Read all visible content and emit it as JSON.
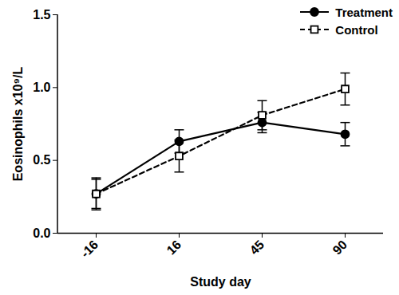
{
  "chart_data": {
    "type": "line",
    "categories": [
      "-16",
      "16",
      "45",
      "90"
    ],
    "x_label": "Study day",
    "y_label": "Eosinophils x10⁹/L",
    "ylim": [
      0,
      1.5
    ],
    "yticks": [
      {
        "value": 0,
        "label": "0.0"
      },
      {
        "value": 0.5,
        "label": "0.5"
      },
      {
        "value": 1,
        "label": "1.0"
      },
      {
        "value": 1.5,
        "label": "1.5"
      }
    ],
    "legend": "upper right",
    "series": [
      {
        "name": "Treatment",
        "color": "#000000",
        "marker": "circle",
        "line_style": "solid",
        "values": [
          0.27,
          0.63,
          0.76,
          0.68
        ],
        "errors": [
          0.1,
          0.08,
          0.07,
          0.08
        ]
      },
      {
        "name": "Control",
        "color": "#000000",
        "marker": "open_square",
        "line_style": "dashed",
        "values": [
          0.27,
          0.53,
          0.81,
          0.99
        ],
        "errors": [
          0.11,
          0.11,
          0.1,
          0.11
        ]
      }
    ]
  }
}
